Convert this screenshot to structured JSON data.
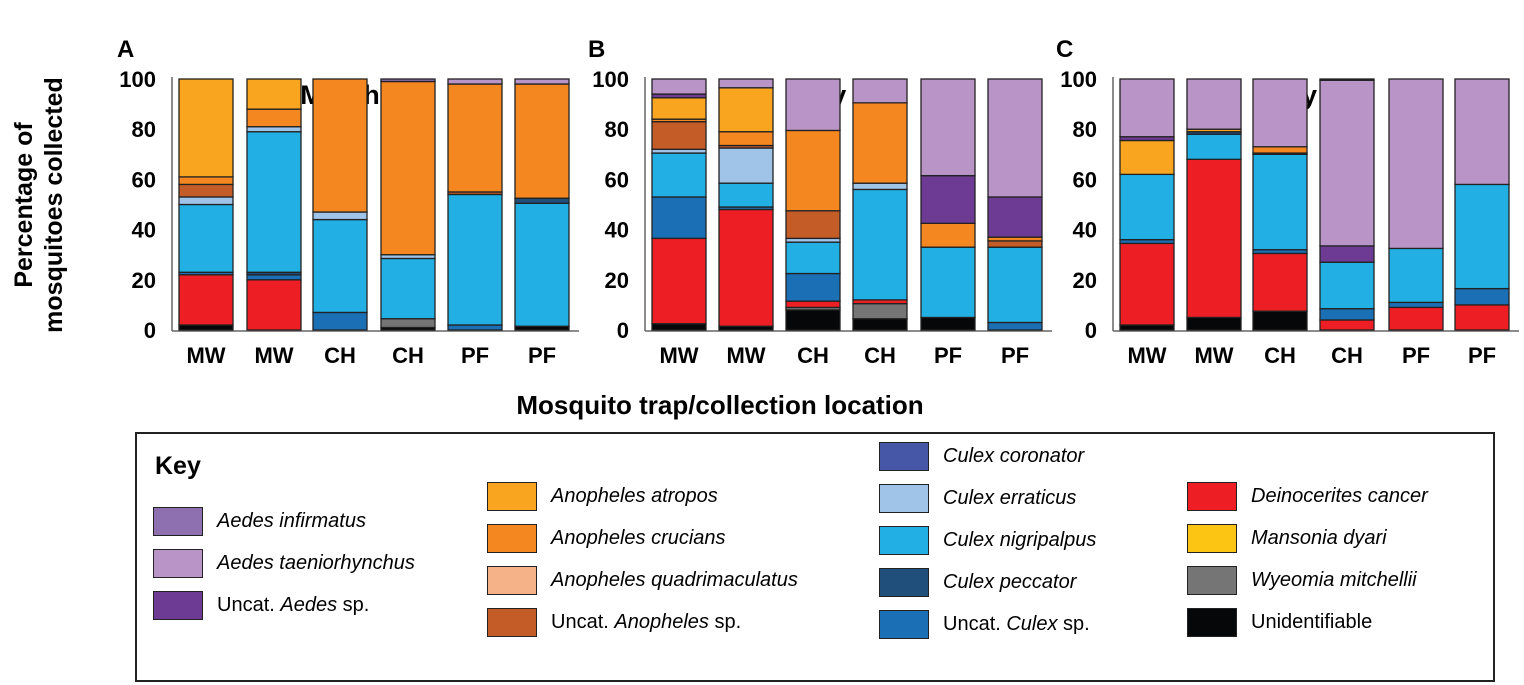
{
  "chart_data": [
    {
      "panel_letter": "A",
      "title": "March",
      "type": "bar",
      "stacked": true,
      "categories": [
        "MW",
        "MW",
        "CH",
        "CH",
        "PF",
        "PF"
      ],
      "ylim": [
        0,
        100
      ],
      "yticks": [
        "0",
        "20",
        "40",
        "60",
        "80",
        "100"
      ],
      "stacks": [
        [
          [
            "un",
            2
          ],
          [
            "dc",
            20
          ],
          [
            "uc",
            1
          ],
          [
            "cn",
            27
          ],
          [
            "ce",
            3
          ],
          [
            "uan",
            5
          ],
          [
            "ac",
            3
          ],
          [
            "aa",
            39
          ]
        ],
        [
          [
            "dc",
            20
          ],
          [
            "uc",
            2
          ],
          [
            "cp",
            1
          ],
          [
            "cn",
            56
          ],
          [
            "ce",
            2
          ],
          [
            "ac",
            7
          ],
          [
            "aa",
            12
          ]
        ],
        [
          [
            "uc",
            7
          ],
          [
            "cn",
            37
          ],
          [
            "ce",
            3
          ],
          [
            "ac",
            53
          ]
        ],
        [
          [
            "un",
            1
          ],
          [
            "wm",
            3.5
          ],
          [
            "cn",
            24
          ],
          [
            "ce",
            1.5
          ],
          [
            "ac",
            69
          ],
          [
            "ai",
            1
          ]
        ],
        [
          [
            "uc",
            2
          ],
          [
            "cn",
            52
          ],
          [
            "uan",
            1
          ],
          [
            "ac",
            43
          ],
          [
            "at",
            2
          ]
        ],
        [
          [
            "un",
            1.5
          ],
          [
            "cn",
            49
          ],
          [
            "cp",
            2
          ],
          [
            "ac",
            45.5
          ],
          [
            "at",
            2
          ]
        ]
      ]
    },
    {
      "panel_letter": "B",
      "title": "May",
      "type": "bar",
      "stacked": true,
      "categories": [
        "MW",
        "MW",
        "CH",
        "CH",
        "PF",
        "PF"
      ],
      "ylim": [
        0,
        100
      ],
      "yticks": [
        "0",
        "20",
        "40",
        "60",
        "80",
        "100"
      ],
      "stacks": [
        [
          [
            "un",
            2.5
          ],
          [
            "dc",
            34
          ],
          [
            "uc",
            16.5
          ],
          [
            "cn",
            17.5
          ],
          [
            "ce",
            1.5
          ],
          [
            "uan",
            11
          ],
          [
            "ac",
            1
          ],
          [
            "aa",
            8.5
          ],
          [
            "ua",
            1.5
          ],
          [
            "at",
            6
          ]
        ],
        [
          [
            "un",
            1.5
          ],
          [
            "dc",
            46.5
          ],
          [
            "uc",
            1
          ],
          [
            "cn",
            9.5
          ],
          [
            "ce",
            14
          ],
          [
            "uan",
            1
          ],
          [
            "ac",
            5.5
          ],
          [
            "aa",
            17.5
          ],
          [
            "at",
            3.5
          ]
        ],
        [
          [
            "un",
            8
          ],
          [
            "wm",
            1
          ],
          [
            "dc",
            2.5
          ],
          [
            "uc",
            11
          ],
          [
            "cn",
            12.5
          ],
          [
            "ce",
            1.5
          ],
          [
            "uan",
            11
          ],
          [
            "ac",
            32
          ],
          [
            "at",
            20.5
          ]
        ],
        [
          [
            "un",
            4.5
          ],
          [
            "wm",
            6
          ],
          [
            "dc",
            1.5
          ],
          [
            "cn",
            44
          ],
          [
            "ce",
            2.5
          ],
          [
            "ac",
            32
          ],
          [
            "at",
            9.5
          ]
        ],
        [
          [
            "un",
            5
          ],
          [
            "cn",
            28
          ],
          [
            "ac",
            9.5
          ],
          [
            "ua",
            19
          ],
          [
            "at",
            38.5
          ]
        ],
        [
          [
            "uc",
            3
          ],
          [
            "cn",
            30
          ],
          [
            "uan",
            2.5
          ],
          [
            "ac",
            1.5
          ],
          [
            "ua",
            16
          ],
          [
            "at",
            47
          ]
        ]
      ]
    },
    {
      "panel_letter": "C",
      "title": "July",
      "type": "bar",
      "stacked": true,
      "categories": [
        "MW",
        "MW",
        "CH",
        "CH",
        "PF",
        "PF"
      ],
      "ylim": [
        0,
        100
      ],
      "yticks": [
        "0",
        "20",
        "40",
        "60",
        "80",
        "100"
      ],
      "stacks": [
        [
          [
            "un",
            2
          ],
          [
            "dc",
            32.5
          ],
          [
            "uc",
            1.5
          ],
          [
            "cn",
            26
          ],
          [
            "aa",
            13.5
          ],
          [
            "ua",
            1.5
          ],
          [
            "at",
            23
          ]
        ],
        [
          [
            "un",
            5
          ],
          [
            "dc",
            63
          ],
          [
            "cn",
            10
          ],
          [
            "cp",
            1
          ],
          [
            "aa",
            1
          ],
          [
            "at",
            20
          ]
        ],
        [
          [
            "un",
            7.5
          ],
          [
            "dc",
            23
          ],
          [
            "uc",
            1.5
          ],
          [
            "cn",
            38
          ],
          [
            "cp",
            0.5
          ],
          [
            "ac",
            2.5
          ],
          [
            "at",
            27
          ]
        ],
        [
          [
            "dc",
            4
          ],
          [
            "uc",
            4.5
          ],
          [
            "cn",
            18.5
          ],
          [
            "ua",
            6.5
          ],
          [
            "at",
            66
          ],
          [
            "un",
            0.5
          ]
        ],
        [
          [
            "dc",
            9
          ],
          [
            "uc",
            2
          ],
          [
            "cn",
            21.5
          ],
          [
            "at",
            67.5
          ]
        ],
        [
          [
            "dc",
            10
          ],
          [
            "uc",
            6.5
          ],
          [
            "cn",
            41.5
          ],
          [
            "at",
            42
          ]
        ]
      ]
    }
  ],
  "ylabel_line1": "Percentage of",
  "ylabel_line2": "mosquitoes collected",
  "xlabel": "Mosquito trap/collection location",
  "key_title": "Key",
  "species": {
    "ai": {
      "pre": "",
      "it": "Aedes infirmatus",
      "post": "",
      "color": "#8e6fb0"
    },
    "at": {
      "pre": "",
      "it": "Aedes taeniorhynchus",
      "post": "",
      "color": "#b994c6"
    },
    "ua": {
      "pre": "Uncat. ",
      "it": "Aedes",
      "post": " sp.",
      "color": "#6d3a94"
    },
    "aa": {
      "pre": "",
      "it": "Anopheles atropos",
      "post": "",
      "color": "#f9a51f"
    },
    "ac": {
      "pre": "",
      "it": "Anopheles crucians",
      "post": "",
      "color": "#f58720"
    },
    "aq": {
      "pre": "",
      "it": "Anopheles quadrimaculatus",
      "post": "",
      "color": "#f5b187"
    },
    "uan": {
      "pre": "Uncat. ",
      "it": "Anopheles",
      "post": " sp.",
      "color": "#c45c28"
    },
    "cc": {
      "pre": "",
      "it": "Culex coronator",
      "post": "",
      "color": "#4657a8"
    },
    "ce": {
      "pre": "",
      "it": "Culex erraticus",
      "post": "",
      "color": "#9fc4e8"
    },
    "cn": {
      "pre": "",
      "it": "Culex nigripalpus",
      "post": "",
      "color": "#22b0e4"
    },
    "cp": {
      "pre": "",
      "it": "Culex peccator",
      "post": "",
      "color": "#1f4f7a"
    },
    "uc": {
      "pre": "Uncat. ",
      "it": "Culex",
      "post": " sp.",
      "color": "#1b6fb5"
    },
    "dc": {
      "pre": "",
      "it": "Deinocerites cancer",
      "post": "",
      "color": "#ed1f24"
    },
    "md": {
      "pre": "",
      "it": "Mansonia dyari",
      "post": "",
      "color": "#fcc413"
    },
    "wm": {
      "pre": "",
      "it": "Wyeomia mitchellii",
      "post": "",
      "color": "#767575"
    },
    "un": {
      "pre": "Unidentifiable",
      "it": "",
      "post": "",
      "color": "#050708"
    }
  },
  "key_columns": [
    [
      "ai",
      "at",
      "ua"
    ],
    [
      "aa",
      "ac",
      "aq",
      "uan"
    ],
    [
      "cc",
      "ce",
      "cn",
      "cp",
      "uc"
    ],
    [
      "dc",
      "md",
      "wm",
      "un"
    ]
  ]
}
